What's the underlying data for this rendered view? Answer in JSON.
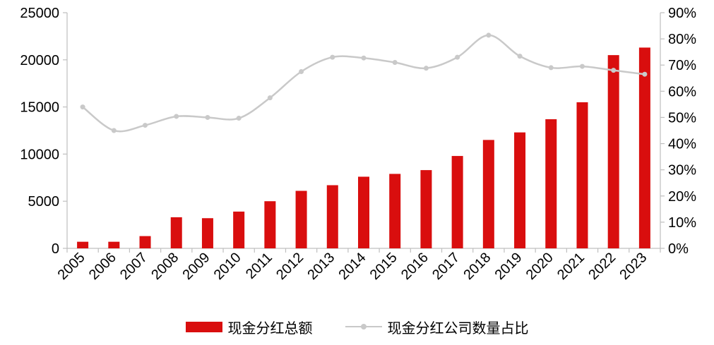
{
  "chart_data": {
    "type": "bar",
    "title": "",
    "xlabel": "",
    "ylabel": "",
    "categories": [
      "2005",
      "2006",
      "2007",
      "2008",
      "2009",
      "2010",
      "2011",
      "2012",
      "2013",
      "2014",
      "2015",
      "2016",
      "2017",
      "2018",
      "2019",
      "2020",
      "2021",
      "2022",
      "2023"
    ],
    "series": [
      {
        "name": "现金分红总额",
        "type": "bar",
        "axis": "left",
        "color": "#d90e0e",
        "values": [
          700,
          700,
          1300,
          3300,
          3200,
          3900,
          5000,
          6100,
          6700,
          7600,
          7900,
          8300,
          9800,
          11500,
          12300,
          13700,
          15500,
          20500,
          21300
        ]
      },
      {
        "name": "现金分红公司数量占比",
        "type": "line",
        "axis": "right",
        "color": "#c9c9c9",
        "values": [
          54,
          45,
          47,
          50.4,
          50,
          49.7,
          57.5,
          67.5,
          73,
          72.7,
          71,
          68.8,
          73,
          81.4,
          73.4,
          69,
          69.5,
          68,
          66.5
        ]
      }
    ],
    "left_axis": {
      "min": 0,
      "max": 25000,
      "step": 5000,
      "tick_labels": [
        "0",
        "5000",
        "10000",
        "15000",
        "20000",
        "25000"
      ]
    },
    "right_axis": {
      "min": 0,
      "max": 90,
      "step": 10,
      "tick_labels": [
        "0%",
        "10%",
        "20%",
        "30%",
        "40%",
        "50%",
        "60%",
        "70%",
        "80%",
        "90%"
      ]
    },
    "grid": false,
    "legend_position": "bottom"
  },
  "legend": {
    "bar_label": "现金分红总额",
    "line_label": "现金分红公司数量占比"
  },
  "colors": {
    "bar": "#d90e0e",
    "line": "#c9c9c9",
    "axis_line": "#bfbfbf",
    "text": "#000000"
  }
}
